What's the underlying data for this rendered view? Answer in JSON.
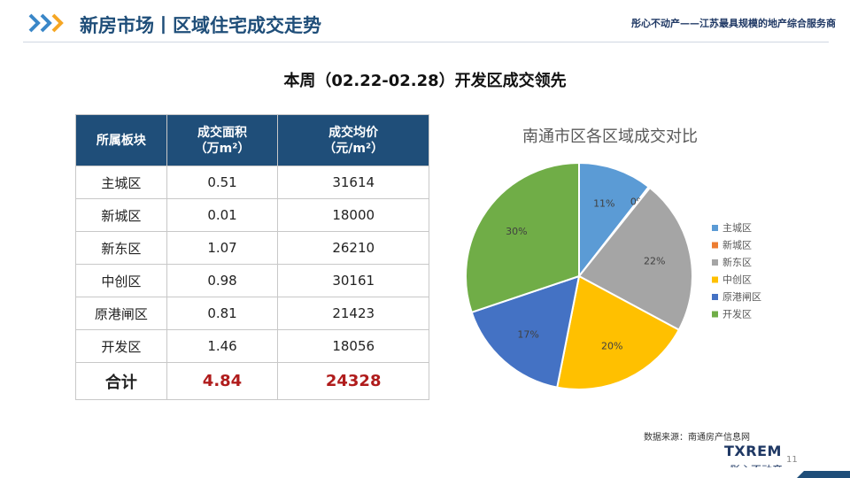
{
  "header": {
    "title": "新房市场丨区域住宅成交走势",
    "tagline": "彤心不动产——江苏最具规模的地产综合服务商",
    "accent_color": "#1f4e79",
    "chevron_colors": [
      "#3a87c8",
      "#f5a623"
    ]
  },
  "subtitle": "本周（02.22-02.28）开发区成交领先",
  "table": {
    "headers": [
      {
        "line1": "所属板块",
        "line2": ""
      },
      {
        "line1": "成交面积",
        "line2": "（万m²）"
      },
      {
        "line1": "成交均价",
        "line2": "（元/m²）"
      }
    ],
    "rows": [
      {
        "area": "主城区",
        "size": "0.51",
        "price": "31614"
      },
      {
        "area": "新城区",
        "size": "0.01",
        "price": "18000"
      },
      {
        "area": "新东区",
        "size": "1.07",
        "price": "26210"
      },
      {
        "area": "中创区",
        "size": "0.98",
        "price": "30161"
      },
      {
        "area": "原港闸区",
        "size": "0.81",
        "price": "21423"
      },
      {
        "area": "开发区",
        "size": "1.46",
        "price": "18056"
      }
    ],
    "total": {
      "label": "合计",
      "size": "4.84",
      "price": "24328"
    }
  },
  "chart_data": {
    "type": "pie",
    "title": "南通市区各区域成交对比",
    "categories": [
      "主城区",
      "新城区",
      "新东区",
      "中创区",
      "原港闸区",
      "开发区"
    ],
    "values": [
      0.51,
      0.01,
      1.07,
      0.98,
      0.81,
      1.46
    ],
    "data_labels": [
      "11%",
      "0%",
      "22%",
      "20%",
      "17%",
      "30%"
    ],
    "colors": [
      "#5b9bd5",
      "#ed7d31",
      "#a5a5a5",
      "#ffc000",
      "#4472c4",
      "#70ad47"
    ],
    "legend_position": "right"
  },
  "footer": {
    "source": "数据来源：南通房产信息网",
    "logo_main": "TXREM",
    "logo_sub": "彤心不动产",
    "page_number": "11"
  }
}
